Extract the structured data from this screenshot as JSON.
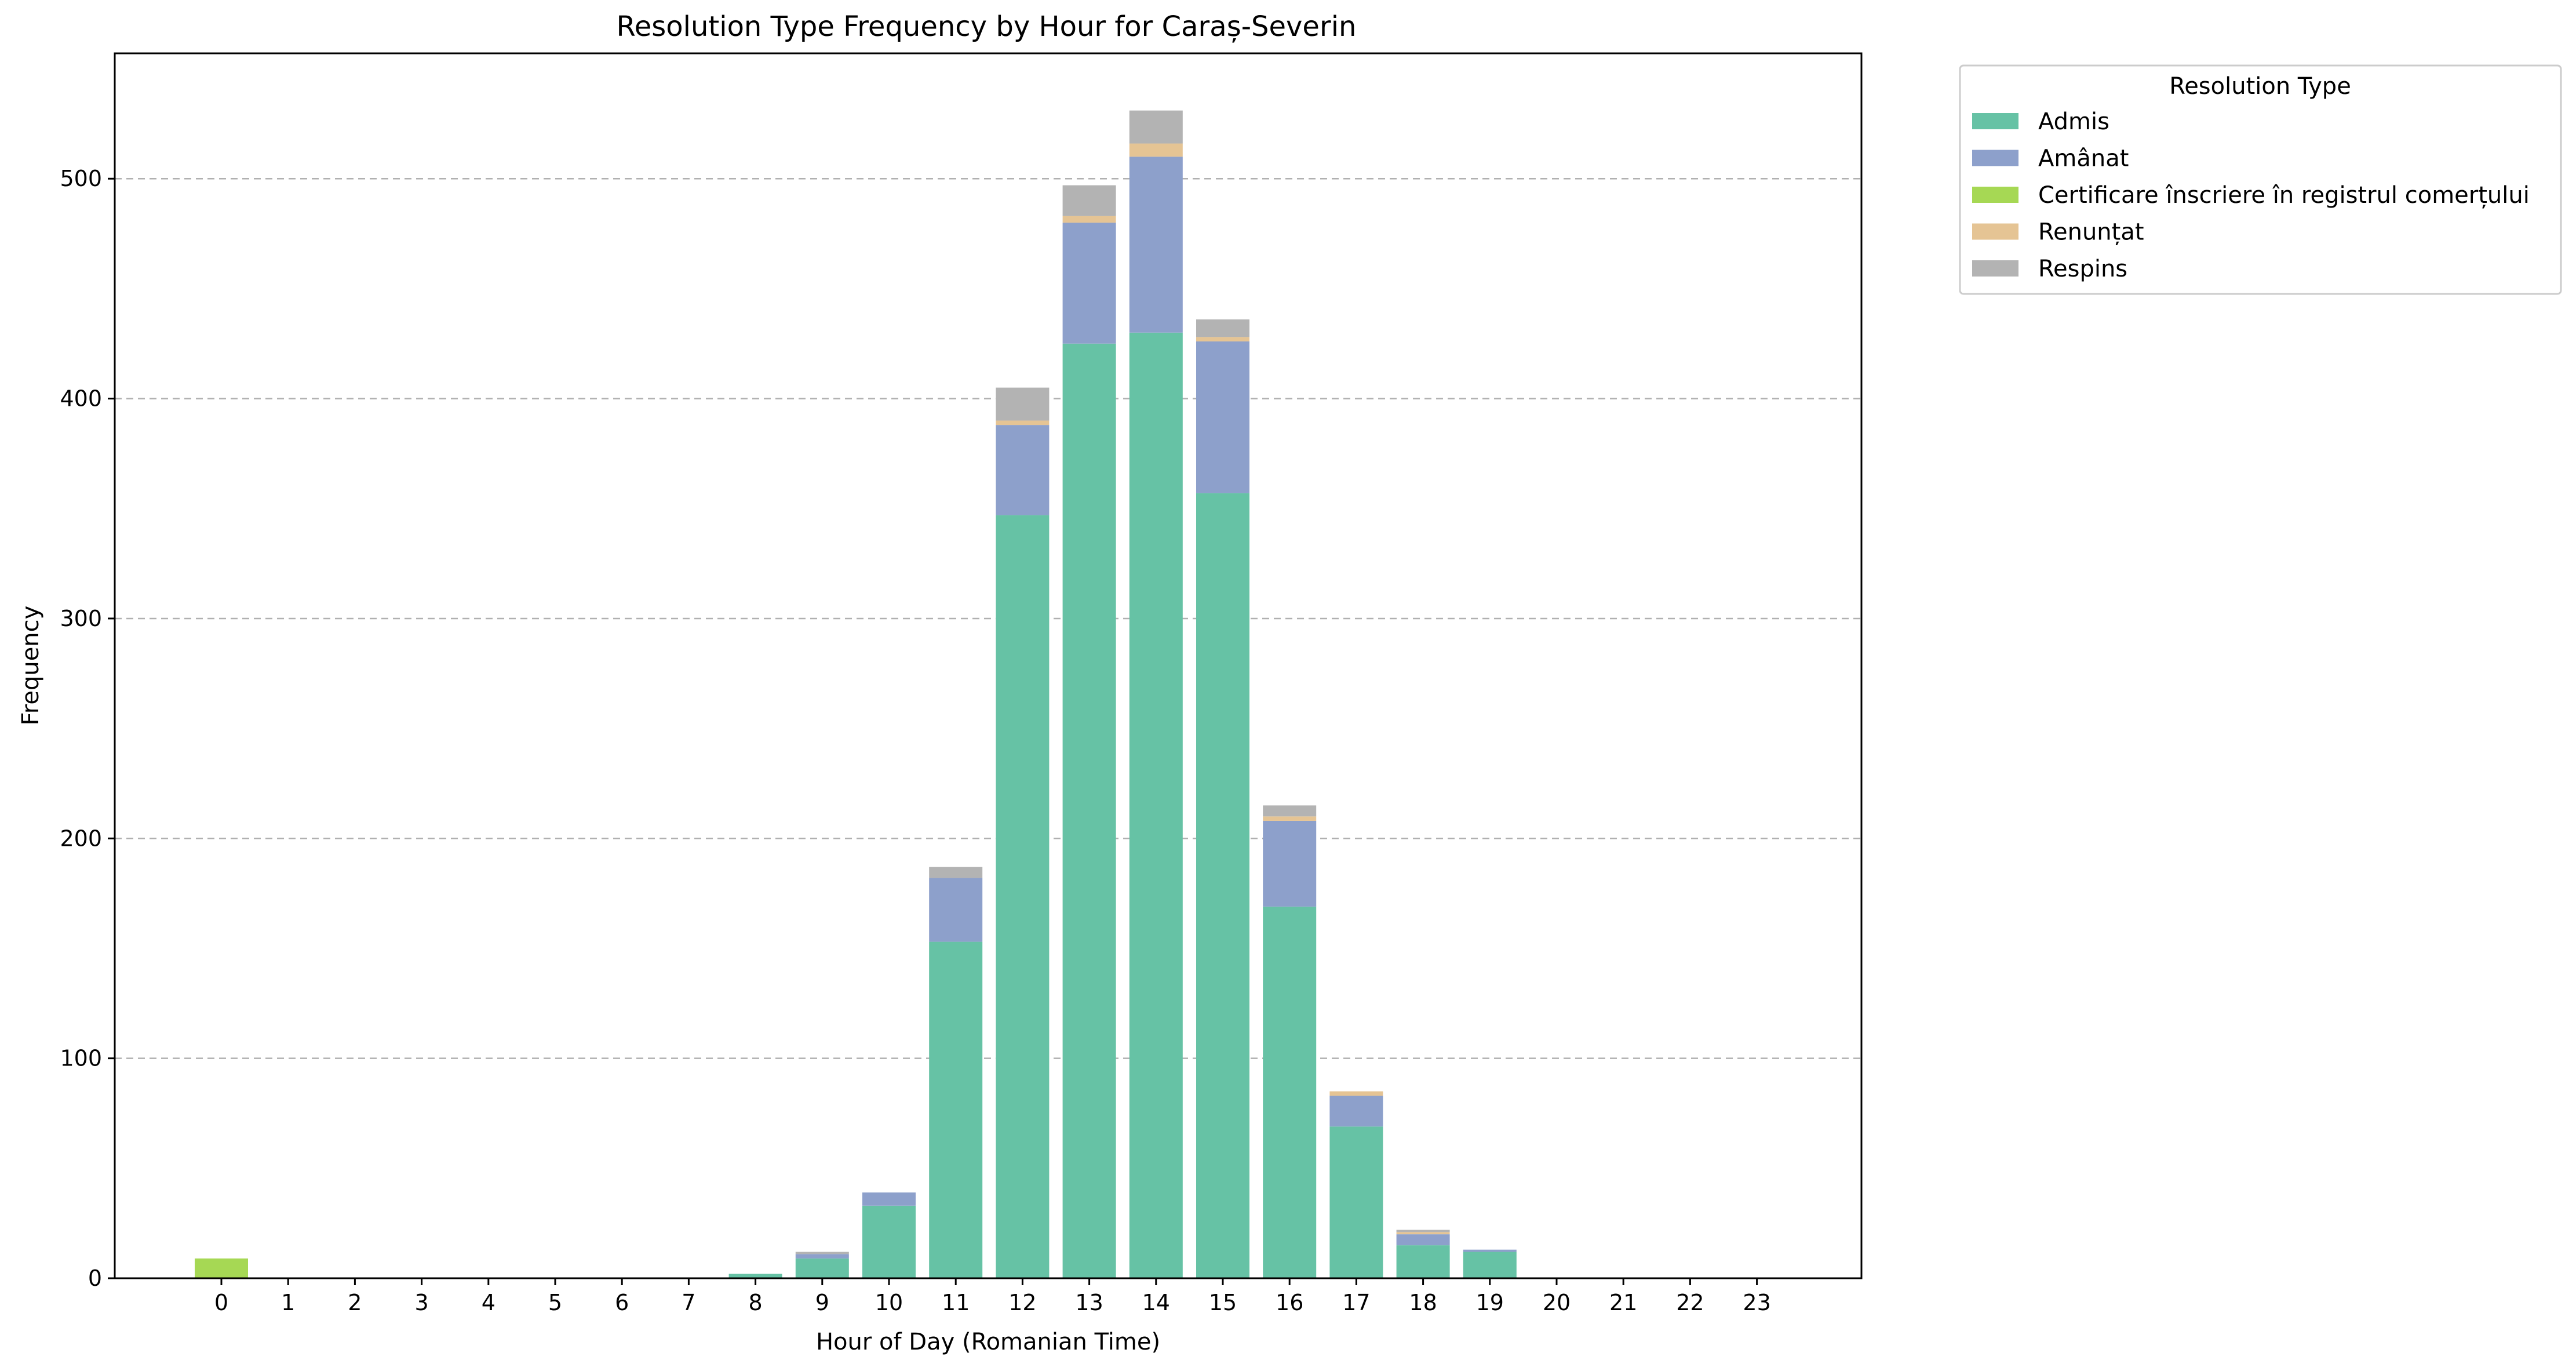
{
  "chart_data": {
    "type": "bar",
    "stacked": true,
    "title": "Resolution Type Frequency by Hour for Caraș-Severin",
    "xlabel": "Hour of Day (Romanian Time)",
    "ylabel": "Frequency",
    "ylim": [
      0,
      557
    ],
    "yticks": [
      0,
      100,
      200,
      300,
      400,
      500
    ],
    "grid": "y-dashed",
    "legend": {
      "title": "Resolution Type",
      "placement": "outside-right-top"
    },
    "categories": [
      "0",
      "1",
      "2",
      "3",
      "4",
      "5",
      "6",
      "7",
      "8",
      "9",
      "10",
      "11",
      "12",
      "13",
      "14",
      "15",
      "16",
      "17",
      "18",
      "19",
      "20",
      "21",
      "22",
      "23"
    ],
    "series": [
      {
        "name": "Admis",
        "color": "#66c2a5",
        "values": [
          0,
          0,
          0,
          0,
          0,
          0,
          0,
          0,
          2,
          9,
          33,
          153,
          347,
          425,
          430,
          357,
          169,
          69,
          15,
          12,
          0,
          0,
          0,
          0
        ]
      },
      {
        "name": "Amânat",
        "color": "#8da0cb",
        "values": [
          0,
          0,
          0,
          0,
          0,
          0,
          0,
          0,
          0,
          2,
          6,
          29,
          41,
          55,
          80,
          69,
          39,
          14,
          5,
          1,
          0,
          0,
          0,
          0
        ]
      },
      {
        "name": "Certificare înscriere în registrul comerțului",
        "color": "#a6d854",
        "values": [
          9,
          0,
          0,
          0,
          0,
          0,
          0,
          0,
          0,
          0,
          0,
          0,
          0,
          0,
          0,
          0,
          0,
          0,
          0,
          0,
          0,
          0,
          0,
          0
        ]
      },
      {
        "name": "Renunțat",
        "color": "#e5c494",
        "values": [
          0,
          0,
          0,
          0,
          0,
          0,
          0,
          0,
          0,
          0,
          0,
          0,
          2,
          3,
          6,
          2,
          2,
          2,
          1,
          0,
          0,
          0,
          0,
          0
        ]
      },
      {
        "name": "Respins",
        "color": "#b3b3b3",
        "values": [
          0,
          0,
          0,
          0,
          0,
          0,
          0,
          0,
          0,
          1,
          0,
          5,
          15,
          14,
          15,
          8,
          5,
          0,
          1,
          0,
          0,
          0,
          0,
          0
        ]
      }
    ]
  }
}
